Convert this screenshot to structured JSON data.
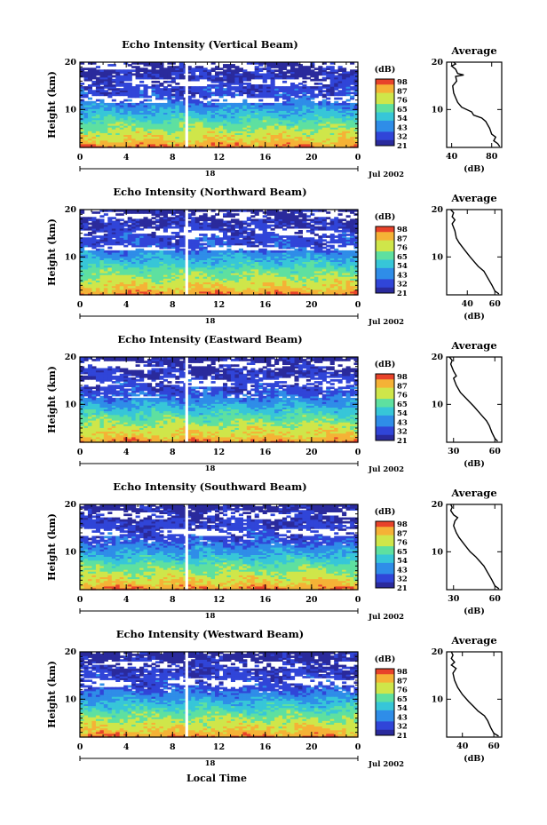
{
  "x_axis_label": "Local Time",
  "chart_data": [
    {
      "type": "heatmap",
      "title": "Echo Intensity (Vertical Beam)",
      "ylabel": "Height (km)",
      "x_ticks": [
        "0",
        "4",
        "8",
        "12",
        "16",
        "20",
        "0"
      ],
      "y_ticks": [
        "20",
        "10"
      ],
      "date_marker": "18",
      "date_label": "Jul 2002",
      "colorbar": {
        "unit": "(dB)",
        "levels": [
          "98",
          "87",
          "76",
          "65",
          "54",
          "43",
          "32",
          "21"
        ]
      },
      "xlim": [
        0,
        24
      ],
      "ylim": [
        2,
        20
      ],
      "average": {
        "title": "Average",
        "xlabel": "(dB)",
        "xticks": [
          "40",
          "80"
        ],
        "xlim": [
          35,
          90
        ],
        "yticks": [
          "20",
          "10"
        ],
        "profile": [
          [
            88,
            2.2
          ],
          [
            86,
            2.8
          ],
          [
            82,
            3.4
          ],
          [
            84,
            4.2
          ],
          [
            80,
            4.8
          ],
          [
            78,
            6
          ],
          [
            74,
            7.5
          ],
          [
            70,
            8.2
          ],
          [
            62,
            8.8
          ],
          [
            60,
            9.5
          ],
          [
            50,
            10.5
          ],
          [
            46,
            11.5
          ],
          [
            44,
            12.5
          ],
          [
            42,
            13.5
          ],
          [
            41,
            15
          ],
          [
            45,
            16
          ],
          [
            44,
            17
          ],
          [
            52,
            17.3
          ],
          [
            46,
            17.6
          ],
          [
            44,
            18.5
          ],
          [
            40,
            19.2
          ],
          [
            44,
            19.6
          ],
          [
            42,
            20
          ]
        ]
      }
    },
    {
      "type": "heatmap",
      "title": "Echo Intensity (Northward Beam)",
      "ylabel": "Height (km)",
      "x_ticks": [
        "0",
        "4",
        "8",
        "12",
        "16",
        "20",
        "0"
      ],
      "y_ticks": [
        "20",
        "10"
      ],
      "date_marker": "18",
      "date_label": "Jul 2002",
      "colorbar": {
        "unit": "(dB)",
        "levels": [
          "98",
          "87",
          "76",
          "65",
          "54",
          "43",
          "32",
          "21"
        ]
      },
      "xlim": [
        0,
        24
      ],
      "ylim": [
        2,
        20
      ],
      "average": {
        "title": "Average",
        "xlabel": "(dB)",
        "xticks": [
          "40",
          "60"
        ],
        "xlim": [
          25,
          65
        ],
        "yticks": [
          "20",
          "10"
        ],
        "profile": [
          [
            63,
            2.2
          ],
          [
            60,
            2.8
          ],
          [
            58,
            4
          ],
          [
            55,
            5.5
          ],
          [
            52,
            7
          ],
          [
            48,
            8
          ],
          [
            45,
            9
          ],
          [
            42,
            10
          ],
          [
            38,
            11.5
          ],
          [
            34,
            13
          ],
          [
            32,
            14
          ],
          [
            31,
            15.5
          ],
          [
            29,
            17
          ],
          [
            31,
            17.8
          ],
          [
            29,
            18.5
          ],
          [
            30,
            19.3
          ],
          [
            28,
            20
          ]
        ]
      }
    },
    {
      "type": "heatmap",
      "title": "Echo Intensity (Eastward Beam)",
      "ylabel": "Height (km)",
      "x_ticks": [
        "0",
        "4",
        "8",
        "12",
        "16",
        "20",
        "0"
      ],
      "y_ticks": [
        "20",
        "10"
      ],
      "date_marker": "18",
      "date_label": "Jul 2002",
      "colorbar": {
        "unit": "(dB)",
        "levels": [
          "98",
          "87",
          "76",
          "65",
          "54",
          "43",
          "32",
          "21"
        ]
      },
      "xlim": [
        0,
        24
      ],
      "ylim": [
        2,
        20
      ],
      "average": {
        "title": "Average",
        "xlabel": "(dB)",
        "xticks": [
          "30",
          "60"
        ],
        "xlim": [
          25,
          65
        ],
        "yticks": [
          "20",
          "10"
        ],
        "profile": [
          [
            62,
            2.2
          ],
          [
            60,
            2.8
          ],
          [
            58,
            4
          ],
          [
            56,
            5.5
          ],
          [
            54,
            6.5
          ],
          [
            51,
            7.5
          ],
          [
            48,
            8.5
          ],
          [
            45,
            9.5
          ],
          [
            40,
            11
          ],
          [
            35,
            12.5
          ],
          [
            32,
            14
          ],
          [
            30,
            15.5
          ],
          [
            32,
            16
          ],
          [
            30,
            17
          ],
          [
            28,
            18.5
          ],
          [
            29,
            19.3
          ],
          [
            27,
            20
          ]
        ]
      }
    },
    {
      "type": "heatmap",
      "title": "Echo Intensity (Southward Beam)",
      "ylabel": "Height (km)",
      "x_ticks": [
        "0",
        "4",
        "8",
        "12",
        "16",
        "20",
        "0"
      ],
      "y_ticks": [
        "20",
        "10"
      ],
      "date_marker": "18",
      "date_label": "Jul 2002",
      "colorbar": {
        "unit": "(dB)",
        "levels": [
          "98",
          "87",
          "76",
          "65",
          "54",
          "43",
          "32",
          "21"
        ]
      },
      "xlim": [
        0,
        24
      ],
      "ylim": [
        2,
        20
      ],
      "average": {
        "title": "Average",
        "xlabel": "(dB)",
        "xticks": [
          "30",
          "60"
        ],
        "xlim": [
          25,
          65
        ],
        "yticks": [
          "20",
          "10"
        ],
        "profile": [
          [
            63,
            2.2
          ],
          [
            60,
            2.8
          ],
          [
            58,
            4
          ],
          [
            55,
            5.5
          ],
          [
            52,
            7
          ],
          [
            49,
            8
          ],
          [
            46,
            9
          ],
          [
            42,
            10
          ],
          [
            38,
            11.5
          ],
          [
            34,
            13
          ],
          [
            32,
            14
          ],
          [
            30,
            15.5
          ],
          [
            31,
            16.5
          ],
          [
            33,
            17.2
          ],
          [
            30,
            17.8
          ],
          [
            28,
            18.7
          ],
          [
            29,
            19.4
          ],
          [
            28,
            20
          ]
        ]
      }
    },
    {
      "type": "heatmap",
      "title": "Echo Intensity (Westward Beam)",
      "ylabel": "Height (km)",
      "x_ticks": [
        "0",
        "4",
        "8",
        "12",
        "16",
        "20",
        "0"
      ],
      "y_ticks": [
        "20",
        "10"
      ],
      "date_marker": "18",
      "date_label": "Jul 2002",
      "colorbar": {
        "unit": "(dB)",
        "levels": [
          "98",
          "87",
          "76",
          "65",
          "54",
          "43",
          "32",
          "21"
        ]
      },
      "xlim": [
        0,
        24
      ],
      "ylim": [
        2,
        20
      ],
      "average": {
        "title": "Average",
        "xlabel": "(dB)",
        "xticks": [
          "40",
          "60"
        ],
        "xlim": [
          30,
          65
        ],
        "yticks": [
          "20",
          "10"
        ],
        "profile": [
          [
            63,
            2.2
          ],
          [
            60,
            2.8
          ],
          [
            58,
            4
          ],
          [
            56,
            5.5
          ],
          [
            54,
            6.5
          ],
          [
            50,
            7.5
          ],
          [
            47,
            8.5
          ],
          [
            44,
            9.5
          ],
          [
            40,
            11
          ],
          [
            37,
            12.5
          ],
          [
            35,
            14
          ],
          [
            34,
            15.5
          ],
          [
            36,
            16.5
          ],
          [
            33,
            17.2
          ],
          [
            35,
            17.8
          ],
          [
            33,
            18.6
          ],
          [
            34,
            19.3
          ],
          [
            33,
            20
          ]
        ]
      }
    }
  ]
}
